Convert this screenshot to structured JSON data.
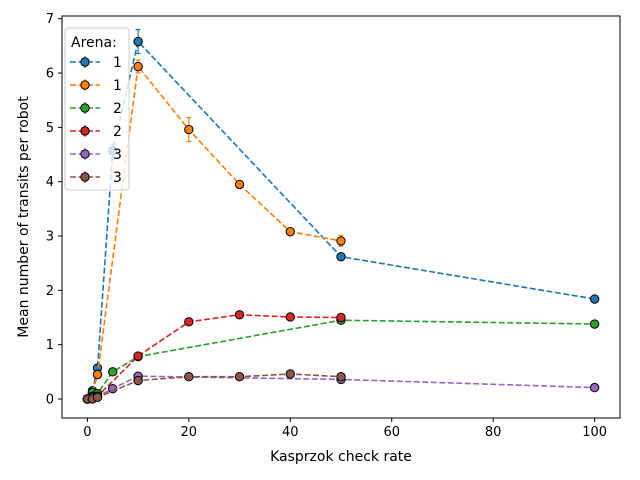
{
  "chart_data": {
    "type": "line",
    "title": "",
    "xlabel": "Kasprzok check rate",
    "ylabel": "Mean number of transits per robot",
    "xlim": [
      -5,
      105
    ],
    "ylim": [
      -0.35,
      7.05
    ],
    "x_ticks": [
      0,
      20,
      40,
      60,
      80,
      100
    ],
    "y_ticks": [
      0,
      1,
      2,
      3,
      4,
      5,
      6,
      7
    ],
    "grid": false,
    "legend_title": "Arena:",
    "legend_position": "top-left",
    "series": [
      {
        "name": "1",
        "color": "#1f77b4",
        "points": [
          {
            "x": 0,
            "y": 0.0,
            "err": 0.02
          },
          {
            "x": 1,
            "y": 0.15,
            "err": 0.03
          },
          {
            "x": 2,
            "y": 0.57,
            "err": 0.05
          },
          {
            "x": 5,
            "y": 4.57,
            "err": 0.12
          },
          {
            "x": 10,
            "y": 6.58,
            "err": 0.22
          },
          {
            "x": 50,
            "y": 2.62,
            "err": 0.06
          },
          {
            "x": 100,
            "y": 1.84,
            "err": 0.04
          }
        ]
      },
      {
        "name": "1",
        "color": "#ff7f0e",
        "points": [
          {
            "x": 0,
            "y": 0.0,
            "err": 0.02
          },
          {
            "x": 1,
            "y": 0.1,
            "err": 0.03
          },
          {
            "x": 2,
            "y": 0.45,
            "err": 0.05
          },
          {
            "x": 10,
            "y": 6.12,
            "err": 0.12
          },
          {
            "x": 20,
            "y": 4.96,
            "err": 0.22
          },
          {
            "x": 30,
            "y": 3.95,
            "err": 0.06
          },
          {
            "x": 40,
            "y": 3.08,
            "err": 0.05
          },
          {
            "x": 50,
            "y": 2.91,
            "err": 0.1
          }
        ]
      },
      {
        "name": "2",
        "color": "#2ca02c",
        "points": [
          {
            "x": 0,
            "y": 0.0,
            "err": 0.02
          },
          {
            "x": 1,
            "y": 0.12,
            "err": 0.02
          },
          {
            "x": 2,
            "y": 0.1,
            "err": 0.02
          },
          {
            "x": 5,
            "y": 0.5,
            "err": 0.03
          },
          {
            "x": 10,
            "y": 0.78,
            "err": 0.03
          },
          {
            "x": 50,
            "y": 1.45,
            "err": 0.03
          },
          {
            "x": 100,
            "y": 1.38,
            "err": 0.03
          }
        ]
      },
      {
        "name": "2",
        "color": "#d62728",
        "points": [
          {
            "x": 0,
            "y": 0.0,
            "err": 0.02
          },
          {
            "x": 1,
            "y": 0.05,
            "err": 0.02
          },
          {
            "x": 2,
            "y": 0.05,
            "err": 0.02
          },
          {
            "x": 10,
            "y": 0.79,
            "err": 0.03
          },
          {
            "x": 20,
            "y": 1.42,
            "err": 0.03
          },
          {
            "x": 30,
            "y": 1.55,
            "err": 0.05
          },
          {
            "x": 40,
            "y": 1.51,
            "err": 0.03
          },
          {
            "x": 50,
            "y": 1.5,
            "err": 0.03
          }
        ]
      },
      {
        "name": "3",
        "color": "#9467bd",
        "points": [
          {
            "x": 0,
            "y": 0.0,
            "err": 0.01
          },
          {
            "x": 1,
            "y": 0.03,
            "err": 0.01
          },
          {
            "x": 2,
            "y": 0.05,
            "err": 0.01
          },
          {
            "x": 5,
            "y": 0.19,
            "err": 0.02
          },
          {
            "x": 10,
            "y": 0.42,
            "err": 0.02
          },
          {
            "x": 50,
            "y": 0.36,
            "err": 0.02
          },
          {
            "x": 100,
            "y": 0.21,
            "err": 0.02
          }
        ]
      },
      {
        "name": "3",
        "color": "#8c564b",
        "points": [
          {
            "x": 0,
            "y": 0.0,
            "err": 0.01
          },
          {
            "x": 1,
            "y": 0.0,
            "err": 0.01
          },
          {
            "x": 2,
            "y": 0.03,
            "err": 0.01
          },
          {
            "x": 10,
            "y": 0.34,
            "err": 0.02
          },
          {
            "x": 20,
            "y": 0.41,
            "err": 0.02
          },
          {
            "x": 30,
            "y": 0.41,
            "err": 0.02
          },
          {
            "x": 40,
            "y": 0.46,
            "err": 0.02
          },
          {
            "x": 50,
            "y": 0.41,
            "err": 0.02
          }
        ]
      }
    ]
  }
}
